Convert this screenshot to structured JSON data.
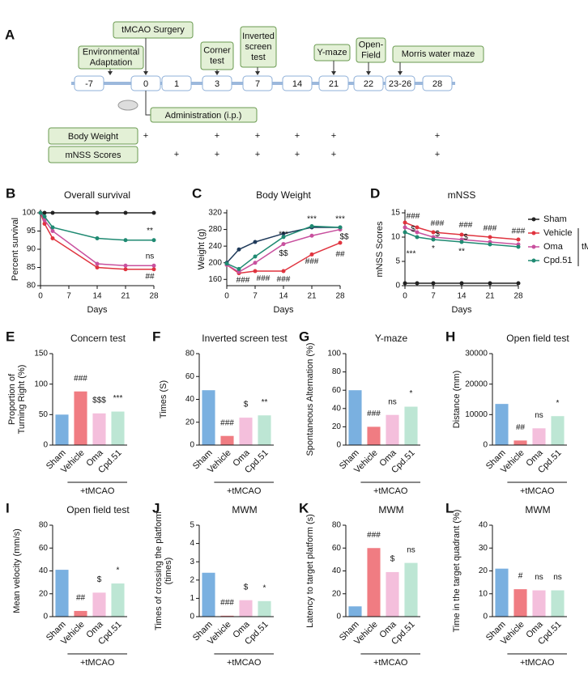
{
  "timeline": {
    "panel": "A",
    "days": [
      "-7",
      "0",
      "1",
      "3",
      "7",
      "14",
      "21",
      "22",
      "23-26",
      "28"
    ],
    "callouts": [
      {
        "lines": [
          "Environmental",
          "Adaptation"
        ]
      },
      {
        "lines": [
          "tMCAO Surgery"
        ]
      },
      {
        "lines": [
          "Corner",
          "test"
        ]
      },
      {
        "lines": [
          "Inverted",
          "screen",
          "test"
        ]
      },
      {
        "lines": [
          "Y-maze"
        ]
      },
      {
        "lines": [
          "Open-",
          "Field"
        ]
      },
      {
        "lines": [
          "Morris water maze"
        ]
      }
    ],
    "administration": "Administration (i.p.)",
    "measures": [
      {
        "label": "Body Weight",
        "marks": [
          null,
          "+",
          null,
          "+",
          "+",
          "+",
          "+",
          null,
          null,
          "+"
        ]
      },
      {
        "label": "mNSS Scores",
        "marks": [
          null,
          null,
          "+",
          "+",
          "+",
          "+",
          "+",
          null,
          null,
          "+"
        ]
      }
    ]
  },
  "chart_data": [
    {
      "panel": "B",
      "type": "line",
      "title": "Overall survival",
      "xlabel": "Days",
      "ylabel": "Percent survival",
      "x": [
        0,
        1,
        3,
        14,
        21,
        28
      ],
      "xlim": [
        0,
        28
      ],
      "xticks": [
        0,
        7,
        14,
        21,
        28
      ],
      "ylim": [
        80,
        100
      ],
      "yticks": [
        80,
        85,
        90,
        95,
        100
      ],
      "series": [
        {
          "color": "#222222",
          "values": [
            100,
            100,
            100,
            100,
            100,
            100
          ]
        },
        {
          "color": "#e0343f",
          "values": [
            100,
            97,
            93,
            85,
            84.5,
            84.5
          ]
        },
        {
          "color": "#c8509e",
          "values": [
            100,
            98,
            95,
            86,
            85.5,
            85.5
          ]
        },
        {
          "color": "#1f8a72",
          "values": [
            100,
            99,
            96,
            93,
            92.5,
            92.5
          ]
        }
      ],
      "annotations": [
        {
          "text": "**",
          "x": 27,
          "y": 95
        },
        {
          "text": "ns",
          "x": 27,
          "y": 88
        },
        {
          "text": "##",
          "x": 27,
          "y": 82.5
        }
      ]
    },
    {
      "panel": "C",
      "type": "line",
      "title": "Body Weight",
      "xlabel": "Days",
      "ylabel": "Weight (g)",
      "x": [
        0,
        3,
        7,
        14,
        21,
        28
      ],
      "xlim": [
        0,
        28
      ],
      "xticks": [
        0,
        7,
        14,
        21,
        28
      ],
      "ylim": [
        145,
        320
      ],
      "yticks": [
        160,
        200,
        240,
        280,
        320
      ],
      "series": [
        {
          "color": "#1f3a5a",
          "values": [
            200,
            232,
            250,
            270,
            285,
            285
          ]
        },
        {
          "color": "#e0343f",
          "values": [
            195,
            175,
            180,
            180,
            220,
            248
          ]
        },
        {
          "color": "#c8509e",
          "values": [
            195,
            178,
            200,
            245,
            265,
            280
          ]
        },
        {
          "color": "#1f8a72",
          "values": [
            198,
            185,
            215,
            262,
            288,
            285
          ]
        }
      ],
      "annotations": [
        {
          "text": "###",
          "x": 4,
          "y": 158
        },
        {
          "text": "###",
          "x": 9,
          "y": 162
        },
        {
          "text": "***",
          "x": 14,
          "y": 268
        },
        {
          "text": "$$",
          "x": 14,
          "y": 222
        },
        {
          "text": "###",
          "x": 14,
          "y": 160
        },
        {
          "text": "***",
          "x": 21,
          "y": 305
        },
        {
          "text": "###",
          "x": 21,
          "y": 203
        },
        {
          "text": "***",
          "x": 28,
          "y": 305
        },
        {
          "text": "$$",
          "x": 29,
          "y": 262
        },
        {
          "text": "##",
          "x": 28,
          "y": 220
        }
      ]
    },
    {
      "panel": "D",
      "type": "line",
      "title": "mNSS",
      "xlabel": "Days",
      "ylabel": "mNSS Scores",
      "x": [
        0,
        3,
        7,
        14,
        21,
        28
      ],
      "xlim": [
        0,
        28
      ],
      "xticks": [
        0,
        7,
        14,
        21,
        28
      ],
      "ylim": [
        0,
        15
      ],
      "yticks": [
        0,
        5,
        10,
        15
      ],
      "series": [
        {
          "name": "Sham",
          "color": "#222222",
          "values": [
            0.5,
            0.5,
            0.5,
            0.5,
            0.5,
            0.5
          ]
        },
        {
          "name": "Vehicle",
          "color": "#e0343f",
          "values": [
            13,
            12,
            11,
            10.5,
            10,
            9.5
          ]
        },
        {
          "name": "Oma",
          "color": "#c8509e",
          "values": [
            12,
            11,
            10,
            9.5,
            9,
            8.5
          ]
        },
        {
          "name": "Cpd.51",
          "color": "#1f8a72",
          "values": [
            11,
            10,
            9.5,
            9,
            8.5,
            8
          ]
        }
      ],
      "legend": "right",
      "legend_group": "tMCAO",
      "annotations": [
        {
          "text": "###",
          "x": 2,
          "y": 14.3
        },
        {
          "text": "$",
          "x": 2,
          "y": 11.6
        },
        {
          "text": "***",
          "x": 1.5,
          "y": 6.5
        },
        {
          "text": "###",
          "x": 8,
          "y": 12.8
        },
        {
          "text": "$",
          "x": 8,
          "y": 10.6
        },
        {
          "text": "*",
          "x": 7,
          "y": 7.6
        },
        {
          "text": "###",
          "x": 15,
          "y": 12.4
        },
        {
          "text": "$",
          "x": 15,
          "y": 9.9
        },
        {
          "text": "**",
          "x": 14,
          "y": 7
        },
        {
          "text": "###",
          "x": 21,
          "y": 11.8
        },
        {
          "text": "###",
          "x": 28,
          "y": 11.2
        }
      ]
    },
    {
      "panel": "E",
      "type": "bar",
      "title": "Concern test",
      "ylabel": [
        "Proportion of",
        "Turning Right (%)"
      ],
      "categories": [
        "Sham",
        "Vehicle",
        "Oma",
        "Cpd.51"
      ],
      "values": [
        50,
        88,
        52,
        55
      ],
      "colors": [
        "#7ab0e0",
        "#f07c82",
        "#f4bfdc",
        "#bde6d4"
      ],
      "ylim": [
        0,
        150
      ],
      "yticks": [
        0,
        50,
        100,
        150
      ],
      "annotations": [
        null,
        "###",
        "$$$",
        "***"
      ],
      "group_label": "+tMCAO"
    },
    {
      "panel": "F",
      "type": "bar",
      "title": "Inverted screen test",
      "ylabel": "Times (S)",
      "categories": [
        "Sham",
        "Vehicle",
        "Oma",
        "Cpd.51"
      ],
      "values": [
        48,
        8,
        24,
        26
      ],
      "colors": [
        "#7ab0e0",
        "#f07c82",
        "#f4bfdc",
        "#bde6d4"
      ],
      "ylim": [
        0,
        80
      ],
      "yticks": [
        0,
        20,
        40,
        60,
        80
      ],
      "annotations": [
        null,
        "###",
        "$",
        "**"
      ],
      "group_label": "+tMCAO"
    },
    {
      "panel": "G",
      "type": "bar",
      "title": "Y-maze",
      "ylabel": "Spontaneous Alternation (%)",
      "categories": [
        "Sham",
        "Vehicle",
        "Oma",
        "Cpd.51"
      ],
      "values": [
        60,
        20,
        33,
        42
      ],
      "colors": [
        "#7ab0e0",
        "#f07c82",
        "#f4bfdc",
        "#bde6d4"
      ],
      "ylim": [
        0,
        100
      ],
      "yticks": [
        0,
        20,
        40,
        60,
        80,
        100
      ],
      "annotations": [
        null,
        "###",
        "ns",
        "*"
      ],
      "group_label": "+tMCAO"
    },
    {
      "panel": "H",
      "type": "bar",
      "title": "Open field test",
      "ylabel": "Distance (mm)",
      "categories": [
        "Sham",
        "Vehicle",
        "Oma",
        "Cpd.51"
      ],
      "values": [
        13500,
        1500,
        5500,
        9500
      ],
      "colors": [
        "#7ab0e0",
        "#f07c82",
        "#f4bfdc",
        "#bde6d4"
      ],
      "ylim": [
        0,
        30000
      ],
      "yticks": [
        0,
        10000,
        20000,
        30000
      ],
      "annotations": [
        null,
        "##",
        "ns",
        "*"
      ],
      "group_label": "+tMCAO"
    },
    {
      "panel": "I",
      "type": "bar",
      "title": "Open field test",
      "ylabel": "Mean velocity (mm/s)",
      "categories": [
        "Sham",
        "Vehicle",
        "Oma",
        "Cpd.51"
      ],
      "values": [
        41,
        5,
        21,
        29
      ],
      "colors": [
        "#7ab0e0",
        "#f07c82",
        "#f4bfdc",
        "#bde6d4"
      ],
      "ylim": [
        0,
        80
      ],
      "yticks": [
        0,
        20,
        40,
        60,
        80
      ],
      "annotations": [
        null,
        "##",
        "$",
        "*"
      ],
      "group_label": "+tMCAO"
    },
    {
      "panel": "J",
      "type": "bar",
      "title": "MWM",
      "ylabel": [
        "Times of crossing the platform",
        "(times)"
      ],
      "categories": [
        "Sham",
        "Vehicle",
        "Oma",
        "Cpd.51"
      ],
      "values": [
        2.4,
        0.05,
        0.9,
        0.85
      ],
      "colors": [
        "#7ab0e0",
        "#f07c82",
        "#f4bfdc",
        "#bde6d4"
      ],
      "ylim": [
        0,
        5
      ],
      "yticks": [
        0,
        1,
        2,
        3,
        4,
        5
      ],
      "annotations": [
        null,
        "###",
        "$",
        "*"
      ],
      "group_label": "+tMCAO"
    },
    {
      "panel": "K",
      "type": "bar",
      "title": "MWM",
      "ylabel": "Latency to target platform (s)",
      "categories": [
        "Sham",
        "Vehicle",
        "Oma",
        "Cpd.51"
      ],
      "values": [
        9,
        60,
        39,
        47
      ],
      "colors": [
        "#7ab0e0",
        "#f07c82",
        "#f4bfdc",
        "#bde6d4"
      ],
      "ylim": [
        0,
        80
      ],
      "yticks": [
        0,
        20,
        40,
        60,
        80
      ],
      "annotations": [
        null,
        "###",
        "$",
        "ns"
      ],
      "group_label": "+tMCAO"
    },
    {
      "panel": "L",
      "type": "bar",
      "title": "MWM",
      "ylabel": "Time in the target quadrant (%)",
      "categories": [
        "Sham",
        "Vehicle",
        "Oma",
        "Cpd.51"
      ],
      "values": [
        21,
        12,
        11.5,
        11.5
      ],
      "colors": [
        "#7ab0e0",
        "#f07c82",
        "#f4bfdc",
        "#bde6d4"
      ],
      "ylim": [
        0,
        40
      ],
      "yticks": [
        0,
        10,
        20,
        30,
        40
      ],
      "annotations": [
        null,
        "#",
        "ns",
        "ns"
      ],
      "group_label": "+tMCAO"
    }
  ]
}
